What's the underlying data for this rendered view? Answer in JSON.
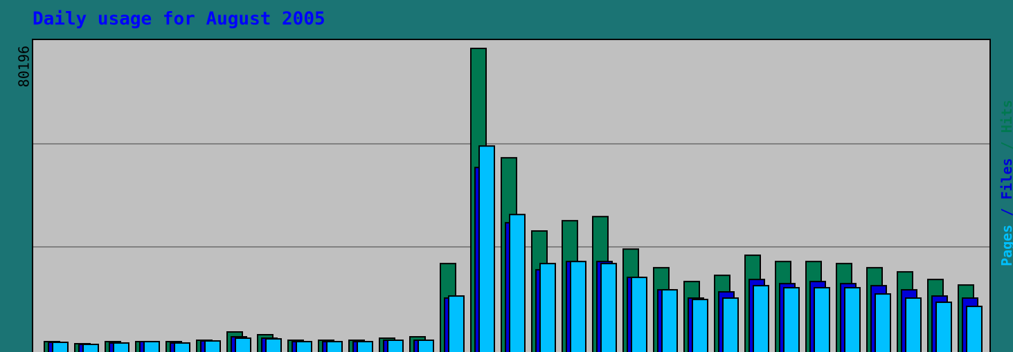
{
  "chart_data": {
    "type": "bar",
    "title": "Daily usage for August 2005",
    "ylim": [
      0,
      80196
    ],
    "yticks": [
      80196
    ],
    "series": [
      {
        "name": "Hits",
        "color": "#007850",
        "values": [
          1670,
          1110,
          1670,
          1670,
          1670,
          2040,
          4260,
          3520,
          2040,
          2040,
          2040,
          2590,
          2960,
          22570,
          80196,
          50900,
          31300,
          34050,
          35150,
          26450,
          21460,
          17760,
          19420,
          24800,
          23120,
          23120,
          22570,
          21460,
          20350,
          18310,
          16830
        ]
      },
      {
        "name": "Files",
        "color": "#0000d8",
        "values": [
          1480,
          925,
          1300,
          1670,
          1300,
          1850,
          2960,
          2590,
          1670,
          1670,
          1670,
          2040,
          2040,
          13330,
          48300,
          33500,
          20900,
          23120,
          23120,
          18870,
          15540,
          13330,
          14990,
          18310,
          17200,
          17760,
          17200,
          16650,
          15540,
          13880,
          13330
        ]
      },
      {
        "name": "Pages",
        "color": "#00c0ff",
        "values": [
          1480,
          925,
          1300,
          1670,
          1300,
          1850,
          2590,
          2400,
          1670,
          1670,
          1670,
          2040,
          2040,
          13880,
          54050,
          35700,
          22570,
          23120,
          22570,
          18870,
          15540,
          12950,
          13330,
          16650,
          16100,
          16100,
          16100,
          14430,
          13330,
          12210,
          11100
        ]
      }
    ]
  }
}
